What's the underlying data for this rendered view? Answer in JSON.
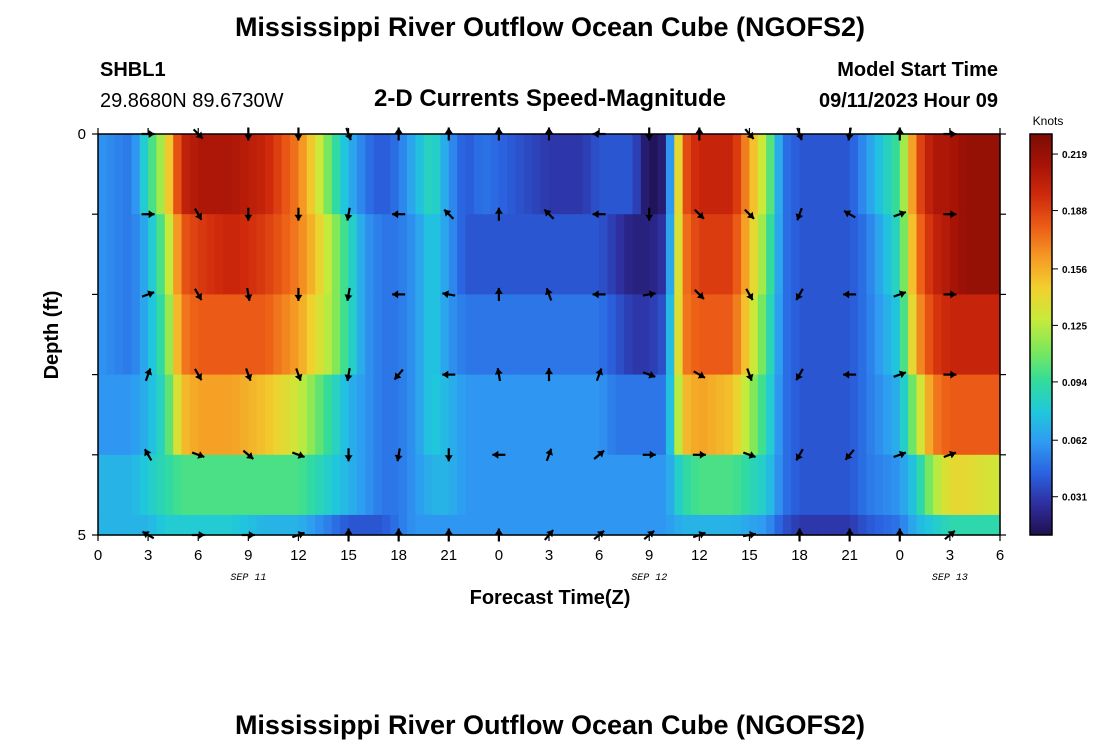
{
  "header": {
    "title": "Mississippi River Outflow Ocean Cube (NGOFS2)",
    "station": "SHBL1",
    "coords": "29.8680N  89.6730W",
    "subtitle": "2-D Currents Speed-Magnitude",
    "model_label": "Model Start Time",
    "model_time": "09/11/2023 Hour 09",
    "footer_title": "Mississippi River Outflow Ocean Cube (NGOFS2)"
  },
  "chart_data": {
    "type": "heatmap",
    "title": "2-D Currents Speed-Magnitude",
    "xlabel": "Forecast Time(Z)",
    "ylabel": "Depth (ft)",
    "ylim": [
      0,
      5
    ],
    "y_ticks": [
      "0",
      "5"
    ],
    "x_tick_labels": [
      "0",
      "3",
      "6",
      "9",
      "12",
      "15",
      "18",
      "21",
      "0",
      "3",
      "6",
      "9",
      "12",
      "15",
      "18",
      "21",
      "0",
      "3",
      "6"
    ],
    "date_labels": [
      {
        "label": "SEP 11",
        "at_hour": 9
      },
      {
        "label": "SEP 12",
        "at_hour": 33
      },
      {
        "label": "SEP 13",
        "at_hour": 51
      }
    ],
    "x_range_hours": [
      0,
      54
    ],
    "colorbar": {
      "unit": "Knots",
      "range": [
        0.01,
        0.23
      ],
      "tick_values": [
        "0.031",
        "0.062",
        "0.094",
        "0.125",
        "0.156",
        "0.188",
        "0.219"
      ],
      "colors": [
        "#20104f",
        "#2e2e9e",
        "#2a62e0",
        "#2f9af2",
        "#20c8dc",
        "#33dc9a",
        "#7ee85a",
        "#c8ea3a",
        "#f2d02e",
        "#f59a24",
        "#ec5c16",
        "#cf2a0c",
        "#a61306",
        "#7c0b04"
      ]
    },
    "depth_rows_ft": [
      0.5,
      1.5,
      2.5,
      3.5,
      4.5,
      5.0
    ],
    "speed_profile_hours": [
      0,
      2,
      3,
      4,
      5,
      6,
      8,
      10,
      12,
      13,
      14,
      15,
      16,
      17,
      18,
      19,
      20,
      21,
      22,
      23,
      25,
      27,
      29,
      30,
      31,
      32,
      33,
      34,
      35,
      36,
      38,
      40,
      41,
      42,
      43,
      45,
      46,
      48,
      49,
      50,
      51,
      52,
      54
    ],
    "speed_profile_rows": [
      [
        0.06,
        0.05,
        0.09,
        0.13,
        0.2,
        0.21,
        0.21,
        0.2,
        0.17,
        0.14,
        0.1,
        0.07,
        0.05,
        0.04,
        0.05,
        0.07,
        0.09,
        0.06,
        0.04,
        0.05,
        0.04,
        0.03,
        0.03,
        0.04,
        0.04,
        0.04,
        0.01,
        0.02,
        0.18,
        0.2,
        0.2,
        0.12,
        0.05,
        0.04,
        0.04,
        0.04,
        0.06,
        0.1,
        0.18,
        0.21,
        0.21,
        0.22,
        0.22
      ],
      [
        0.06,
        0.05,
        0.07,
        0.11,
        0.18,
        0.19,
        0.2,
        0.19,
        0.17,
        0.15,
        0.12,
        0.09,
        0.06,
        0.05,
        0.05,
        0.06,
        0.08,
        0.06,
        0.04,
        0.04,
        0.04,
        0.04,
        0.04,
        0.04,
        0.03,
        0.02,
        0.02,
        0.03,
        0.17,
        0.19,
        0.19,
        0.11,
        0.05,
        0.04,
        0.04,
        0.04,
        0.05,
        0.09,
        0.17,
        0.2,
        0.21,
        0.22,
        0.22
      ],
      [
        0.06,
        0.05,
        0.07,
        0.1,
        0.17,
        0.18,
        0.18,
        0.18,
        0.16,
        0.14,
        0.12,
        0.09,
        0.06,
        0.05,
        0.05,
        0.06,
        0.08,
        0.06,
        0.05,
        0.05,
        0.05,
        0.05,
        0.05,
        0.05,
        0.04,
        0.03,
        0.03,
        0.04,
        0.17,
        0.18,
        0.18,
        0.1,
        0.05,
        0.04,
        0.04,
        0.04,
        0.05,
        0.08,
        0.16,
        0.19,
        0.2,
        0.2,
        0.2
      ],
      [
        0.06,
        0.06,
        0.07,
        0.09,
        0.15,
        0.16,
        0.16,
        0.15,
        0.13,
        0.11,
        0.09,
        0.07,
        0.06,
        0.05,
        0.05,
        0.06,
        0.08,
        0.07,
        0.06,
        0.06,
        0.06,
        0.06,
        0.06,
        0.06,
        0.05,
        0.05,
        0.05,
        0.05,
        0.15,
        0.16,
        0.15,
        0.09,
        0.05,
        0.04,
        0.04,
        0.04,
        0.05,
        0.07,
        0.12,
        0.17,
        0.18,
        0.18,
        0.18
      ],
      [
        0.07,
        0.07,
        0.08,
        0.09,
        0.1,
        0.1,
        0.1,
        0.1,
        0.1,
        0.09,
        0.08,
        0.07,
        0.06,
        0.05,
        0.05,
        0.06,
        0.07,
        0.07,
        0.06,
        0.06,
        0.06,
        0.06,
        0.06,
        0.06,
        0.06,
        0.06,
        0.06,
        0.06,
        0.09,
        0.1,
        0.1,
        0.08,
        0.05,
        0.04,
        0.04,
        0.04,
        0.05,
        0.06,
        0.08,
        0.12,
        0.14,
        0.14,
        0.13
      ],
      [
        0.07,
        0.07,
        0.07,
        0.08,
        0.08,
        0.08,
        0.08,
        0.07,
        0.07,
        0.06,
        0.05,
        0.04,
        0.04,
        0.04,
        0.05,
        0.06,
        0.06,
        0.06,
        0.06,
        0.06,
        0.06,
        0.06,
        0.06,
        0.06,
        0.06,
        0.06,
        0.06,
        0.06,
        0.07,
        0.07,
        0.07,
        0.06,
        0.04,
        0.03,
        0.03,
        0.03,
        0.04,
        0.05,
        0.07,
        0.08,
        0.09,
        0.09,
        0.09
      ]
    ],
    "vector_hours": [
      3,
      6,
      9,
      12,
      15,
      18,
      21,
      24,
      27,
      30,
      33,
      36,
      39,
      42,
      45,
      48,
      51
    ],
    "vector_depths_ft": [
      0,
      1,
      2,
      3,
      4,
      5
    ],
    "vector_directions_deg": [
      [
        90,
        135,
        180,
        180,
        160,
        0,
        0,
        0,
        0,
        270,
        180,
        0,
        140,
        160,
        190,
        0,
        90
      ],
      [
        90,
        150,
        180,
        180,
        190,
        270,
        315,
        0,
        315,
        270,
        180,
        135,
        135,
        200,
        300,
        70,
        90
      ],
      [
        70,
        150,
        170,
        180,
        190,
        270,
        280,
        0,
        340,
        270,
        80,
        135,
        150,
        210,
        270,
        70,
        90
      ],
      [
        20,
        150,
        160,
        160,
        190,
        220,
        270,
        350,
        0,
        20,
        110,
        120,
        160,
        210,
        270,
        70,
        90
      ],
      [
        330,
        110,
        130,
        110,
        180,
        190,
        180,
        270,
        20,
        50,
        90,
        90,
        110,
        210,
        220,
        70,
        70
      ],
      [
        300,
        90,
        90,
        70,
        0,
        0,
        0,
        0,
        40,
        50,
        50,
        70,
        80,
        0,
        0,
        0,
        50
      ]
    ]
  }
}
